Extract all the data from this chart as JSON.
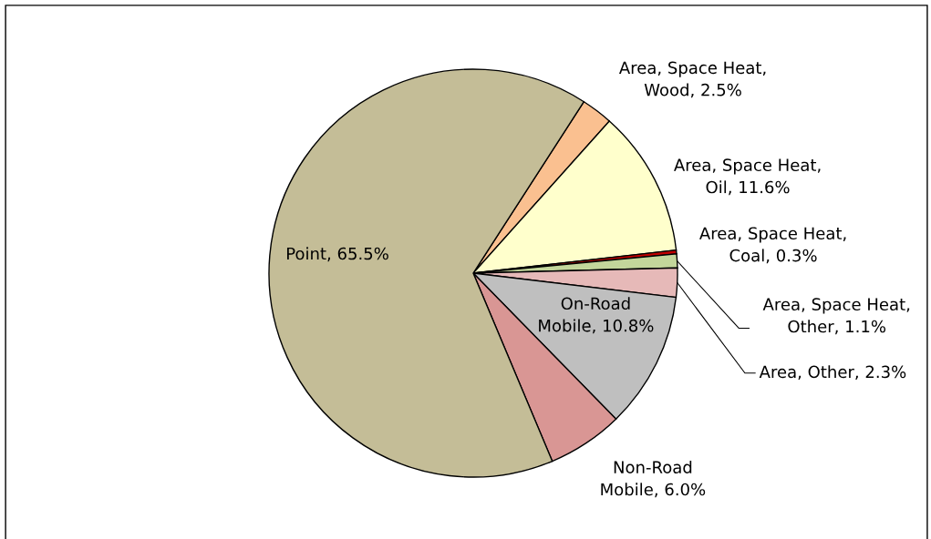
{
  "chart_data": {
    "type": "pie",
    "categories": [
      "Area, Space Heat, Wood",
      "Area, Space Heat, Oil",
      "Area, Space Heat, Coal",
      "Area, Space Heat, Other",
      "Area, Other",
      "On-Road Mobile",
      "Non-Road Mobile",
      "Point"
    ],
    "values": [
      2.5,
      11.6,
      0.3,
      1.1,
      2.3,
      10.8,
      6.0,
      65.5
    ],
    "colors": [
      "#fac090",
      "#ffffcc",
      "#c00000",
      "#c3d69b",
      "#e6b9b8",
      "#bfbfbf",
      "#d99694",
      "#c4bd97"
    ],
    "value_labels": [
      "2.5%",
      "11.6%",
      "0.3%",
      "1.1%",
      "2.3%",
      "10.8%",
      "6.0%",
      "65.5%"
    ]
  }
}
